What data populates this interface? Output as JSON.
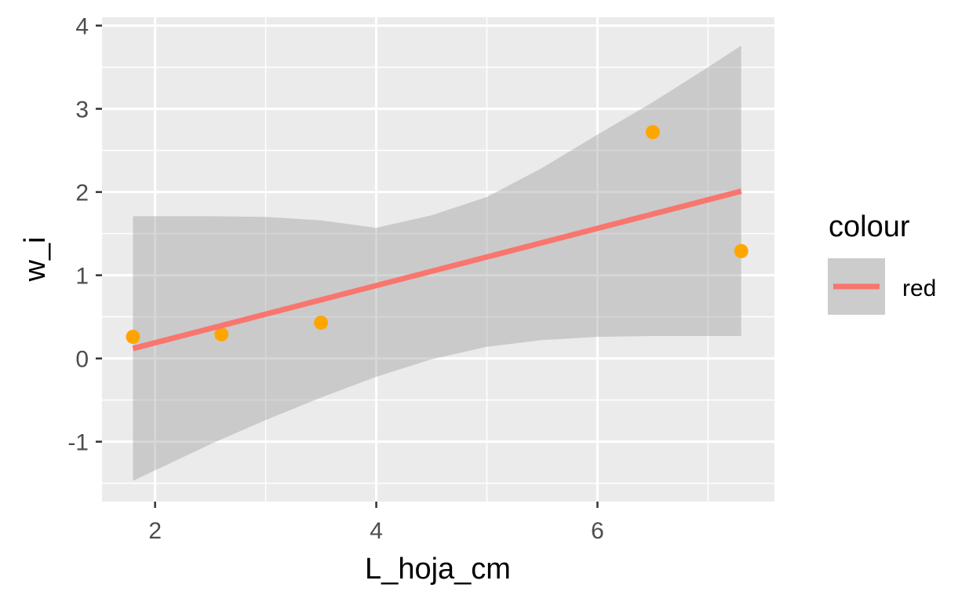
{
  "chart_data": {
    "type": "scatter",
    "title": "",
    "xlabel": "L_hoja_cm",
    "ylabel": "w_i",
    "xlim": [
      1.52,
      7.6
    ],
    "ylim": [
      -1.72,
      4.1
    ],
    "x_ticks": [
      2,
      4,
      6
    ],
    "x_tick_labels": [
      "2",
      "4",
      "6"
    ],
    "x_minor_ticks": [
      3,
      5,
      7
    ],
    "y_ticks": [
      -1,
      0,
      1,
      2,
      3,
      4
    ],
    "y_tick_labels": [
      "-1",
      "0",
      "1",
      "2",
      "3",
      "4"
    ],
    "y_minor_ticks": [
      -1.5,
      -0.5,
      0.5,
      1.5,
      2.5,
      3.5
    ],
    "grid": true,
    "points": {
      "color": "#FFA500",
      "x": [
        1.8,
        2.6,
        3.5,
        6.5,
        7.3
      ],
      "y": [
        0.26,
        0.29,
        0.43,
        2.72,
        1.29
      ]
    },
    "fit_line": {
      "color": "#F8766D",
      "x": [
        1.8,
        7.3
      ],
      "y": [
        0.12,
        2.01
      ]
    },
    "confidence_band": {
      "color": "#999999",
      "x": [
        1.8,
        2.5,
        3.0,
        3.5,
        4.0,
        4.5,
        5.0,
        5.5,
        6.0,
        6.5,
        7.0,
        7.3
      ],
      "lower": [
        -1.47,
        -1.03,
        -0.74,
        -0.47,
        -0.22,
        -0.01,
        0.14,
        0.22,
        0.26,
        0.27,
        0.27,
        0.27
      ],
      "upper": [
        1.71,
        1.71,
        1.7,
        1.66,
        1.57,
        1.72,
        1.94,
        2.29,
        2.69,
        3.08,
        3.5,
        3.76
      ]
    },
    "legend": {
      "title": "colour",
      "position": "right",
      "items": [
        {
          "label": "red",
          "color": "#F8766D"
        }
      ]
    }
  }
}
